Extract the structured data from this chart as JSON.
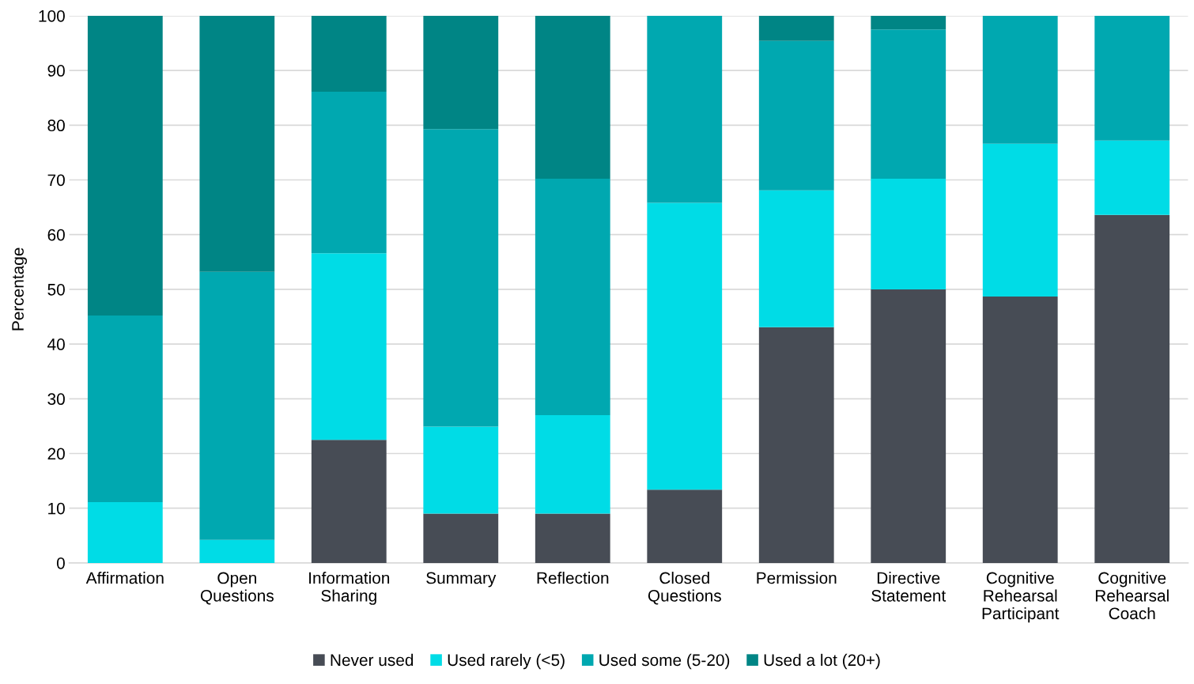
{
  "chart_data": {
    "type": "bar",
    "stacked": true,
    "ylabel": "Percentage",
    "categories": [
      "Affirmation",
      "Open\nQuestions",
      "Information\nSharing",
      "Summary",
      "Reflection",
      "Closed\nQuestions",
      "Permission",
      "Directive\nStatement",
      "Cognitive\nRehearsal\nParticipant",
      "Cognitive\nRehearsal\nCoach"
    ],
    "series": [
      {
        "name": "Never used",
        "color": "#474c55",
        "values": [
          0,
          0,
          22.5,
          9,
          9,
          13.4,
          43.1,
          50,
          48.7,
          63.6
        ]
      },
      {
        "name": "Used rarely (<5)",
        "color": "#00dce6",
        "values": [
          11.1,
          4.2,
          34.1,
          15.9,
          18,
          52.4,
          25,
          20.2,
          27.9,
          13.6
        ]
      },
      {
        "name": "Used some (5-20)",
        "color": "#00a8b0",
        "values": [
          34.1,
          49,
          29.5,
          54.4,
          43.2,
          34.2,
          27.3,
          27.3,
          23.4,
          22.8
        ]
      },
      {
        "name": "Used a lot (20+)",
        "color": "#008585",
        "values": [
          54.8,
          46.8,
          13.9,
          20.7,
          29.8,
          0,
          4.6,
          2.5,
          0,
          0
        ]
      }
    ],
    "ylim": [
      0,
      100
    ],
    "yticks": [
      0,
      10,
      20,
      30,
      40,
      50,
      60,
      70,
      80,
      90,
      100
    ],
    "grid": "y",
    "legend": "bottom"
  }
}
